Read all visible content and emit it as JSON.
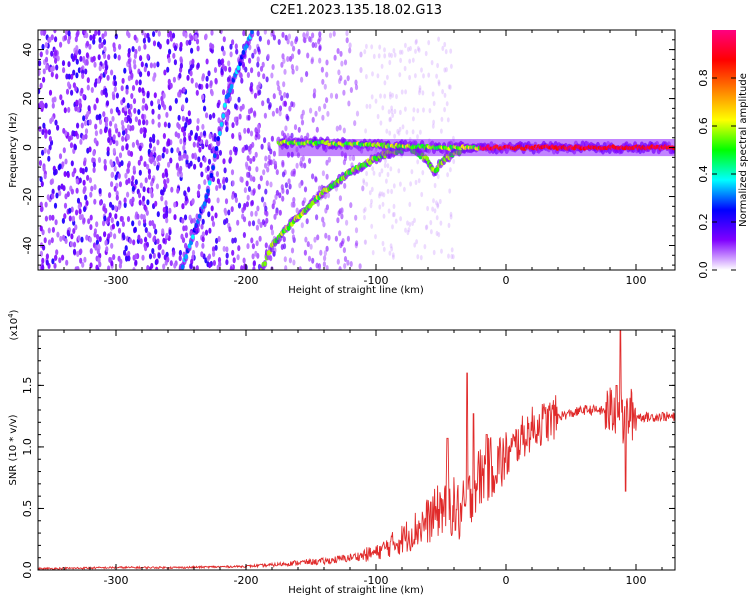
{
  "figure": {
    "title": "C2E1.2023.135.18.02.G13"
  },
  "chart_data": [
    {
      "type": "heatmap",
      "title": "C2E1.2023.135.18.02.G13",
      "xlabel": "Height of straight line (km)",
      "ylabel": "Frequency (Hz)",
      "xlim": [
        -360,
        130
      ],
      "ylim": [
        -50,
        48
      ],
      "x_ticks": [
        -300,
        -200,
        -100,
        0,
        100
      ],
      "y_ticks": [
        -40,
        -20,
        0,
        20,
        40
      ],
      "x_tick_labels": [
        "-300",
        "-200",
        "-100",
        "0",
        "100"
      ],
      "y_tick_labels": [
        "-40",
        "-20",
        "0",
        "20",
        "40"
      ],
      "colormap": [
        "#ffffff",
        "#8000ff",
        "#0000ff",
        "#00ffff",
        "#00ff00",
        "#ffff00",
        "#ff8000",
        "#ff0000",
        "#ff0080"
      ],
      "colorbar": {
        "label": "Normalized spectral amplitude",
        "range": [
          0.0,
          1.0
        ],
        "ticks": [
          0.0,
          0.2,
          0.4,
          0.6,
          0.8
        ],
        "tick_labels": [
          "0.0",
          "0.2",
          "0.4",
          "0.6",
          "0.8"
        ]
      },
      "features": [
        {
          "name": "noise",
          "x_range": [
            -360,
            -110
          ],
          "freq_range": [
            -50,
            48
          ],
          "amplitude": 0.15
        },
        {
          "name": "rising line",
          "points": [
            [
              -250,
              -50
            ],
            [
              -230,
              -20
            ],
            [
              -215,
              20
            ],
            [
              -195,
              48
            ]
          ],
          "amplitude": 0.3
        },
        {
          "name": "lower arc",
          "points": [
            [
              -188,
              -50
            ],
            [
              -180,
              -40
            ],
            [
              -160,
              -28
            ],
            [
              -140,
              -18
            ],
            [
              -120,
              -10
            ],
            [
              -95,
              -3
            ],
            [
              -75,
              0
            ],
            [
              -60,
              -5
            ],
            [
              -55,
              -10
            ],
            [
              -50,
              -6
            ],
            [
              -40,
              -2
            ],
            [
              -25,
              0
            ]
          ],
          "amplitude": 0.55
        },
        {
          "name": "carrier",
          "points": [
            [
              -175,
              2
            ],
            [
              -150,
              2
            ],
            [
              -100,
              1
            ],
            [
              -50,
              0
            ],
            [
              0,
              0
            ],
            [
              50,
              0
            ],
            [
              100,
              0
            ],
            [
              130,
              0
            ]
          ],
          "amplitude": 0.9
        }
      ]
    },
    {
      "type": "line",
      "xlabel": "Height of straight line (km)",
      "ylabel": "SNR (10 * v/v)",
      "y_multiplier": "(x10",
      "y_multiplier_exp": "4",
      "y_multiplier_close": ")",
      "xlim": [
        -360,
        130
      ],
      "ylim": [
        0,
        1.95
      ],
      "x_ticks": [
        -300,
        -200,
        -100,
        0,
        100
      ],
      "y_ticks": [
        0.0,
        0.5,
        1.0,
        1.5
      ],
      "x_tick_labels": [
        "-300",
        "-200",
        "-100",
        "0",
        "100"
      ],
      "y_tick_labels": [
        "0.0",
        "0.5",
        "1.0",
        "1.5"
      ],
      "line_color": "#e02a2a",
      "series": [
        {
          "x": [
            -360,
            -300,
            -250,
            -200,
            -180,
            -160,
            -140,
            -120,
            -100,
            -80,
            -60,
            -50,
            -45,
            -40,
            -35,
            -30,
            -25,
            -20,
            -10,
            0,
            10,
            20,
            30,
            40,
            50,
            60,
            70,
            80,
            85,
            90,
            95,
            100,
            110,
            120,
            130
          ],
          "values": [
            0.01,
            0.02,
            0.02,
            0.03,
            0.04,
            0.06,
            0.07,
            0.1,
            0.14,
            0.25,
            0.4,
            0.5,
            0.55,
            0.5,
            0.45,
            0.5,
            0.7,
            0.75,
            0.85,
            0.9,
            1.05,
            1.15,
            1.2,
            1.25,
            1.27,
            1.3,
            1.3,
            1.28,
            1.3,
            1.2,
            1.27,
            1.25,
            1.24,
            1.25,
            1.24
          ],
          "spikes": [
            [
              -45,
              1.07
            ],
            [
              -30,
              1.6
            ],
            [
              -25,
              1.27
            ],
            [
              -15,
              1.1
            ],
            [
              85,
              1.5
            ],
            [
              88,
              1.95
            ],
            [
              92,
              0.64
            ]
          ]
        }
      ]
    }
  ]
}
